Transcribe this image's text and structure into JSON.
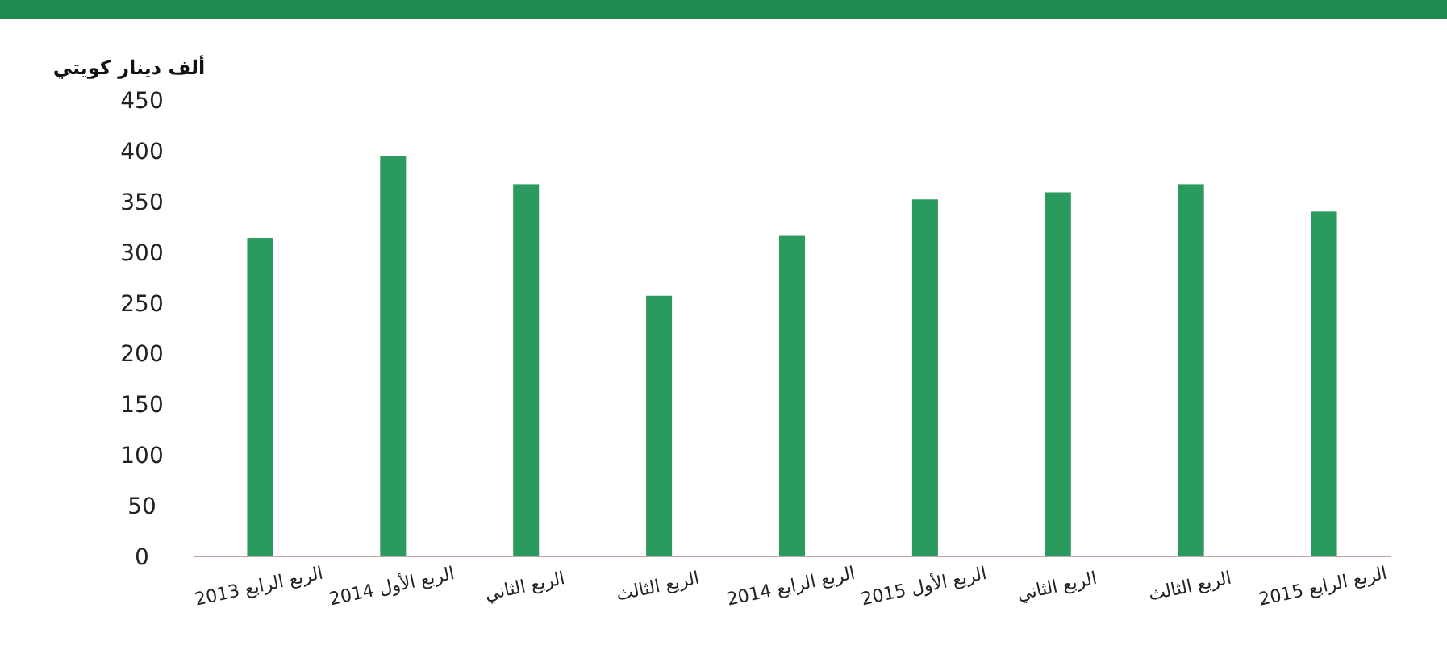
{
  "chart_data": {
    "type": "bar",
    "ylabel": "ألف دينار كويتي",
    "categories": [
      "الربع الرابع 2013",
      "الربع الأول 2014",
      "الربع الثاني",
      "الربع الثالث",
      "الربع الرابع 2014",
      "الربع الأول 2015",
      "الربع الثاني",
      "الربع الثالث",
      "الربع الرابع 2015"
    ],
    "values": [
      314,
      395,
      367,
      257,
      316,
      352,
      359,
      367,
      340
    ],
    "color": "#2a9a5e",
    "ylim": [
      0,
      450
    ],
    "yticks": [
      0,
      50,
      100,
      150,
      200,
      250,
      300,
      350,
      400,
      450
    ],
    "grid": false
  }
}
